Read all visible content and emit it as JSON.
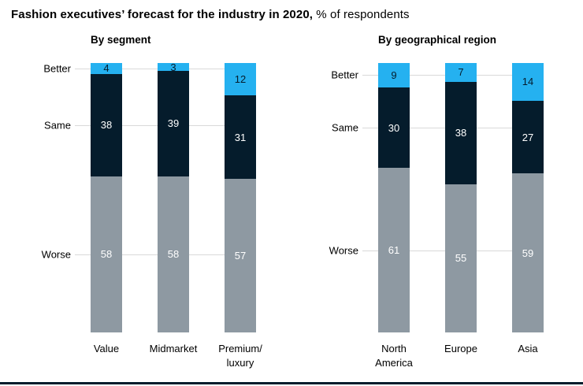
{
  "title": {
    "bold": "Fashion executives’ forecast for the industry in 2020,",
    "rest": " % of respondents"
  },
  "colors": {
    "better": "#25b1f0",
    "same": "#051c2c",
    "worse": "#8e99a2",
    "gridline": "#d9d9d9",
    "bottom_rule": "#051c2c"
  },
  "chart_data": [
    {
      "type": "bar",
      "subtype": "stacked-vertical",
      "title": "By segment",
      "categories": [
        "Value",
        "Midmarket",
        "Premium/\nluxury"
      ],
      "axis_labels": [
        "Better",
        "Same",
        "Worse"
      ],
      "ylim": [
        0,
        100
      ],
      "value_labels": true,
      "legend": "none",
      "series": [
        {
          "name": "Better",
          "color": "#25b1f0",
          "label_color": "#051c2c",
          "values": [
            4,
            3,
            12
          ]
        },
        {
          "name": "Same",
          "color": "#051c2c",
          "label_color": "#ffffff",
          "values": [
            38,
            39,
            31
          ]
        },
        {
          "name": "Worse",
          "color": "#8e99a2",
          "label_color": "#ffffff",
          "values": [
            58,
            58,
            57
          ]
        }
      ]
    },
    {
      "type": "bar",
      "subtype": "stacked-vertical",
      "title": "By geographical region",
      "categories": [
        "North\nAmerica",
        "Europe",
        "Asia"
      ],
      "axis_labels": [
        "Better",
        "Same",
        "Worse"
      ],
      "ylim": [
        0,
        100
      ],
      "value_labels": true,
      "legend": "none",
      "series": [
        {
          "name": "Better",
          "color": "#25b1f0",
          "label_color": "#051c2c",
          "values": [
            9,
            7,
            14
          ]
        },
        {
          "name": "Same",
          "color": "#051c2c",
          "label_color": "#ffffff",
          "values": [
            30,
            38,
            27
          ]
        },
        {
          "name": "Worse",
          "color": "#8e99a2",
          "label_color": "#ffffff",
          "values": [
            61,
            55,
            59
          ]
        }
      ]
    }
  ]
}
